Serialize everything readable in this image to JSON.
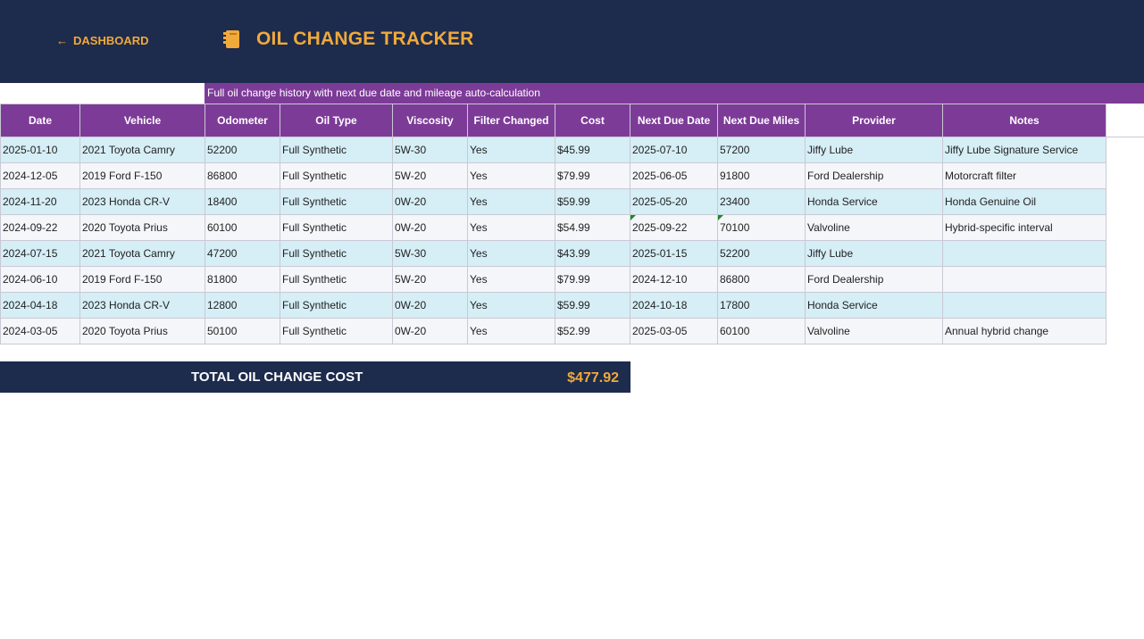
{
  "header": {
    "back_label": "DASHBOARD",
    "back_icon": "left-arrow-icon",
    "title_icon": "notebook-icon",
    "title": "OIL CHANGE TRACKER",
    "subtitle": "Full oil change history with next due date and mileage auto-calculation"
  },
  "table": {
    "columns": [
      "Date",
      "Vehicle",
      "Odometer",
      "Oil Type",
      "Viscosity",
      "Filter Changed",
      "Cost",
      "Next Due Date",
      "Next Due Miles",
      "Provider",
      "Notes"
    ],
    "rows": [
      [
        "2025-01-10",
        "2021 Toyota Camry",
        "52200",
        "Full Synthetic",
        "5W-30",
        "Yes",
        "$45.99",
        "2025-07-10",
        "57200",
        "Jiffy Lube",
        "Jiffy Lube Signature Service"
      ],
      [
        "2024-12-05",
        "2019 Ford F-150",
        "86800",
        "Full Synthetic",
        "5W-20",
        "Yes",
        "$79.99",
        "2025-06-05",
        "91800",
        "Ford Dealership",
        "Motorcraft filter"
      ],
      [
        "2024-11-20",
        "2023 Honda CR-V",
        "18400",
        "Full Synthetic",
        "0W-20",
        "Yes",
        "$59.99",
        "2025-05-20",
        "23400",
        "Honda Service",
        "Honda Genuine Oil"
      ],
      [
        "2024-09-22",
        "2020 Toyota Prius",
        "60100",
        "Full Synthetic",
        "0W-20",
        "Yes",
        "$54.99",
        "2025-09-22",
        "70100",
        "Valvoline",
        "Hybrid-specific interval"
      ],
      [
        "2024-07-15",
        "2021 Toyota Camry",
        "47200",
        "Full Synthetic",
        "5W-30",
        "Yes",
        "$43.99",
        "2025-01-15",
        "52200",
        "Jiffy Lube",
        ""
      ],
      [
        "2024-06-10",
        "2019 Ford F-150",
        "81800",
        "Full Synthetic",
        "5W-20",
        "Yes",
        "$79.99",
        "2024-12-10",
        "86800",
        "Ford Dealership",
        ""
      ],
      [
        "2024-04-18",
        "2023 Honda CR-V",
        "12800",
        "Full Synthetic",
        "0W-20",
        "Yes",
        "$59.99",
        "2024-10-18",
        "17800",
        "Honda Service",
        ""
      ],
      [
        "2024-03-05",
        "2020 Toyota Prius",
        "50100",
        "Full Synthetic",
        "0W-20",
        "Yes",
        "$52.99",
        "2025-03-05",
        "60100",
        "Valvoline",
        "Annual hybrid change"
      ]
    ]
  },
  "total": {
    "label": "TOTAL OIL CHANGE COST",
    "value": "$477.92"
  },
  "colors": {
    "header_bg": "#1d2b4d",
    "accent": "#f0a93b",
    "purple": "#7d3b98",
    "row_odd": "#d6eef6",
    "row_even": "#f5f6fa",
    "flag": "#1a8a2a"
  }
}
